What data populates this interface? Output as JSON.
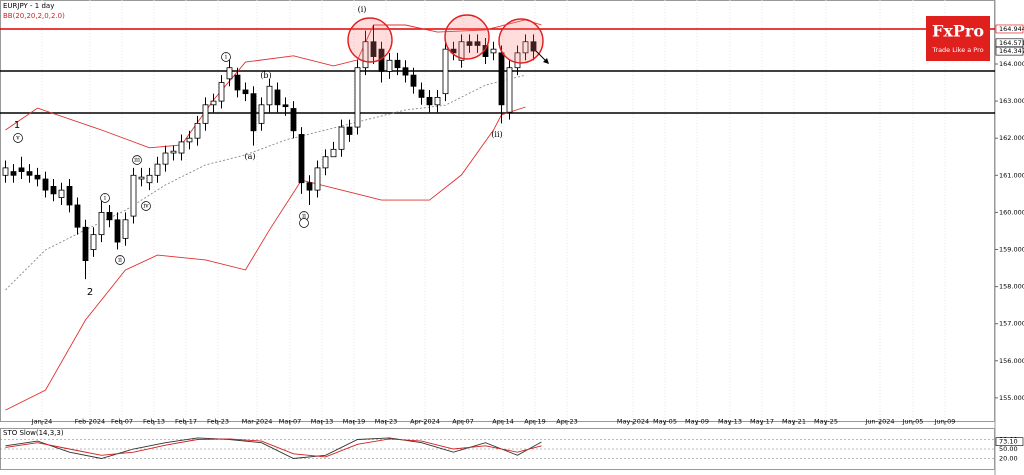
{
  "chart_data": [
    {
      "type": "candlestick",
      "title": "EURJPY - 1 day",
      "subtitle": "BB(20,20,2,0,2.0)",
      "logo": {
        "name": "FxPro",
        "tagline": "Trade Like a Pro"
      },
      "ylim": [
        154.35,
        165.725
      ],
      "yticks": [
        {
          "value": 155,
          "label": "155.000"
        },
        {
          "value": 156,
          "label": "156.000"
        },
        {
          "value": 157,
          "label": "157.000"
        },
        {
          "value": 158,
          "label": "158.000"
        },
        {
          "value": 159,
          "label": "159.000"
        },
        {
          "value": 160,
          "label": "160.000"
        },
        {
          "value": 161,
          "label": "161.000"
        },
        {
          "value": 162,
          "label": "162.000"
        },
        {
          "value": 163,
          "label": "163.000"
        },
        {
          "value": 164,
          "label": "164.000"
        }
      ],
      "x_labels": [
        "Jan-24",
        "Feb-2024",
        "Feb-07",
        "Feb-13",
        "Feb-17",
        "Feb-23",
        "Mar-2024",
        "Mar-07",
        "Mar-13",
        "Mar-19",
        "Mar-23",
        "Apr-2024",
        "Apr-07",
        "Apr-14",
        "Apr-19",
        "Apr-23",
        "May-2024",
        "May-05",
        "May-09",
        "May-13",
        "May-17",
        "May-21",
        "May-25",
        "Jun-2024",
        "Jun-05",
        "Jun-09"
      ],
      "series": [
        {
          "name": "EURJPY",
          "open": [
            161.0,
            161.1,
            161.2,
            161.1,
            161.0,
            160.9,
            160.7,
            160.4,
            160.7,
            160.2,
            159.6,
            159.0,
            159.4,
            160.0,
            159.8,
            159.3,
            159.9,
            160.9,
            160.8,
            161.0,
            161.3,
            161.6,
            161.6,
            161.9,
            162.0,
            162.4,
            162.9,
            163.0,
            163.6,
            163.7,
            163.3,
            163.2,
            162.4,
            162.9,
            163.3,
            162.9,
            162.8,
            162.1,
            160.8,
            160.6,
            161.2,
            161.5,
            161.7,
            162.3,
            162.3,
            163.9,
            164.6,
            164.4,
            163.8,
            164.1,
            163.9,
            163.7,
            163.3,
            163.1,
            162.9,
            163.2,
            164.4,
            164.1,
            164.6,
            164.6,
            164.5,
            164.3,
            164.3,
            162.7,
            163.9,
            164.3,
            164.6
          ],
          "high": [
            161.4,
            161.3,
            161.5,
            161.3,
            161.2,
            161.1,
            160.9,
            160.8,
            160.9,
            160.4,
            159.8,
            159.6,
            160.3,
            160.2,
            160.0,
            160.0,
            161.2,
            161.2,
            161.2,
            161.5,
            161.8,
            161.8,
            162.1,
            162.2,
            162.6,
            163.1,
            163.2,
            163.7,
            164.1,
            163.9,
            163.5,
            163.4,
            163.1,
            163.6,
            163.5,
            163.1,
            163.0,
            162.3,
            161.0,
            161.4,
            161.7,
            161.9,
            162.5,
            162.5,
            164.1,
            164.9,
            165.05,
            164.6,
            164.3,
            164.3,
            164.1,
            163.9,
            163.5,
            163.3,
            163.3,
            164.6,
            164.6,
            164.8,
            164.8,
            164.8,
            164.7,
            164.6,
            164.5,
            164.1,
            164.5,
            164.8,
            164.8
          ],
          "low": [
            160.8,
            160.8,
            160.9,
            160.8,
            160.7,
            160.4,
            160.3,
            160.2,
            160.0,
            159.4,
            158.2,
            158.8,
            159.2,
            159.6,
            159.0,
            159.1,
            159.7,
            160.7,
            160.6,
            160.8,
            161.1,
            161.4,
            161.4,
            161.7,
            161.8,
            162.2,
            162.7,
            162.8,
            163.4,
            163.1,
            163.0,
            161.8,
            162.2,
            162.7,
            162.7,
            162.6,
            162.0,
            160.5,
            160.2,
            160.4,
            161.0,
            161.5,
            161.5,
            161.9,
            162.1,
            163.7,
            164.0,
            163.5,
            163.6,
            163.7,
            163.5,
            163.2,
            162.9,
            162.7,
            162.7,
            163.0,
            164.1,
            163.9,
            164.3,
            164.3,
            164.0,
            164.1,
            162.4,
            162.5,
            163.7,
            164.1,
            164.1
          ],
          "close": [
            161.2,
            161.0,
            161.1,
            161.0,
            160.9,
            160.6,
            160.5,
            160.6,
            160.2,
            159.6,
            158.7,
            159.4,
            160.0,
            159.8,
            159.2,
            159.8,
            161.0,
            160.95,
            161.0,
            161.3,
            161.6,
            161.65,
            161.9,
            162.0,
            162.4,
            162.9,
            163.0,
            163.5,
            163.9,
            163.3,
            163.2,
            162.2,
            162.9,
            163.4,
            162.9,
            162.85,
            162.2,
            160.8,
            160.6,
            161.2,
            161.5,
            161.7,
            162.3,
            162.1,
            163.9,
            164.6,
            164.2,
            163.8,
            164.1,
            163.9,
            163.7,
            163.4,
            163.1,
            162.9,
            163.1,
            164.4,
            164.3,
            164.6,
            164.5,
            164.5,
            164.2,
            164.4,
            162.9,
            163.9,
            164.3,
            164.6,
            164.35
          ]
        }
      ],
      "bands": [
        {
          "name": "upper",
          "color": "#e03030",
          "dash": false,
          "x": [
            0,
            4,
            12,
            18,
            22,
            26,
            30,
            36,
            41,
            44,
            46,
            50,
            54,
            60,
            65,
            67
          ],
          "values": [
            162.22,
            162.81,
            162.22,
            161.74,
            161.82,
            163.03,
            164.05,
            164.22,
            163.95,
            164.11,
            165.05,
            165.05,
            164.86,
            164.92,
            165.19,
            165.05
          ]
        },
        {
          "name": "lower",
          "color": "#e03030",
          "dash": false,
          "x": [
            0,
            5,
            10,
            15,
            19,
            25,
            30,
            33,
            37,
            42,
            47,
            53,
            57,
            61,
            62,
            65
          ],
          "values": [
            154.67,
            155.21,
            157.1,
            158.45,
            158.85,
            158.72,
            158.45,
            159.53,
            160.87,
            160.6,
            160.33,
            160.33,
            161.01,
            162.22,
            162.63,
            162.84
          ]
        },
        {
          "name": "middle",
          "color": "#888888",
          "dash": true,
          "x": [
            0,
            5,
            10,
            15,
            20,
            25,
            30,
            35,
            40,
            45,
            50,
            55,
            60,
            65
          ],
          "values": [
            157.91,
            158.99,
            159.53,
            160.06,
            160.74,
            161.28,
            161.55,
            161.95,
            162.22,
            162.49,
            162.76,
            162.89,
            163.43,
            163.7
          ]
        }
      ],
      "levels": [
        {
          "value": 164.944,
          "color": "#e00000"
        },
        {
          "value": 163.81,
          "color": "#000000"
        },
        {
          "value": 162.68,
          "color": "#000000"
        }
      ],
      "price_labels": [
        164.571,
        164.347
      ],
      "annotations": [
        "1",
        "v",
        "2",
        "i",
        "ii",
        "iii",
        "iv",
        "i",
        "(a)",
        "(b)",
        "ii",
        "(i)",
        "(ii)"
      ]
    },
    {
      "type": "line",
      "title": "STO Slow(14,3,3)",
      "ylim": [
        -10,
        110
      ],
      "yticks": [
        {
          "value": 20,
          "label": "20.00"
        },
        {
          "value": 50,
          "label": "50.00"
        },
        {
          "value": 80,
          "label": "80.00"
        }
      ],
      "readout": {
        "value": 73.1,
        "label": "73.10"
      },
      "x": [
        0,
        4,
        8,
        12,
        16,
        20,
        24,
        28,
        32,
        36,
        40,
        44,
        48,
        52,
        56,
        60,
        64,
        67
      ],
      "series": [
        {
          "name": "main",
          "color": "#333333",
          "values": [
            60,
            75,
            40,
            20,
            50,
            70,
            85,
            80,
            70,
            20,
            30,
            80,
            85,
            70,
            40,
            70,
            30,
            72
          ]
        },
        {
          "name": "signal",
          "color": "#d02020",
          "values": [
            55,
            70,
            50,
            30,
            40,
            62,
            80,
            82,
            75,
            35,
            25,
            65,
            82,
            75,
            50,
            60,
            40,
            60
          ]
        }
      ]
    }
  ]
}
